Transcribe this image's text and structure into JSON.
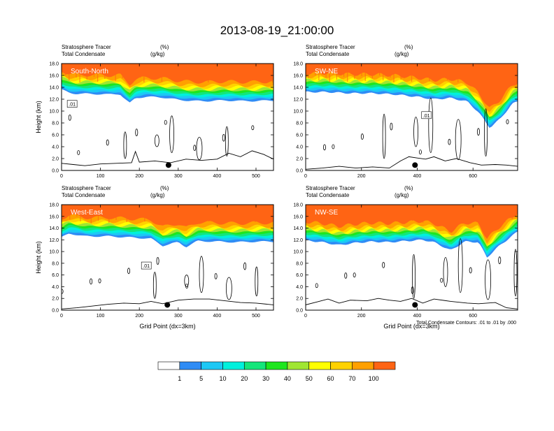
{
  "title": "2013-08-19_21:00:00",
  "colors": {
    "background": "#ffffff",
    "axis": "#000000",
    "palette": [
      "#ffffff",
      "#2f8cf5",
      "#1cc8f5",
      "#00f0dc",
      "#14e67a",
      "#1ee61e",
      "#a0e632",
      "#ffff00",
      "#ffd200",
      "#ffa000",
      "#ff6414",
      "#ff1e14"
    ]
  },
  "colorbar": {
    "levels": [
      "1",
      "5",
      "10",
      "20",
      "30",
      "40",
      "50",
      "60",
      "70",
      "100"
    ]
  },
  "chart_data": [
    {
      "type": "heatmap",
      "panel": "South-North",
      "label": "South-North",
      "legend_left": "Stratosphere Tracer",
      "legend_left2": "Total Condensate",
      "legend_right": "(%)",
      "legend_right2": "(g/kg)",
      "ylabel": "Height (km)",
      "xlabel": "",
      "xlim": [
        0,
        545
      ],
      "ylim": [
        0,
        18
      ],
      "xticks": [
        0,
        100,
        200,
        300,
        400,
        500
      ],
      "yticks": [
        "0.0",
        "2.0",
        "4.0",
        "6.0",
        "8.0",
        "10.0",
        "12.0",
        "14.0",
        "16.0",
        "18.0"
      ],
      "contour_label": ".01",
      "marker_x": 275,
      "tropopause_km": [
        [
          0,
          13.6
        ],
        [
          20,
          13.1
        ],
        [
          40,
          12.9
        ],
        [
          80,
          12.9
        ],
        [
          120,
          12.8
        ],
        [
          150,
          12.9
        ],
        [
          160,
          12.2
        ],
        [
          175,
          11.3
        ],
        [
          190,
          12.2
        ],
        [
          215,
          12.4
        ],
        [
          260,
          12.3
        ],
        [
          300,
          11.9
        ],
        [
          340,
          11.7
        ],
        [
          380,
          11.7
        ],
        [
          420,
          11.8
        ],
        [
          460,
          11.7
        ],
        [
          500,
          11.7
        ],
        [
          545,
          11.8
        ]
      ],
      "terrain_km": [
        [
          0,
          1.2
        ],
        [
          30,
          1.0
        ],
        [
          60,
          0.8
        ],
        [
          100,
          1.1
        ],
        [
          140,
          1.2
        ],
        [
          180,
          1.3
        ],
        [
          190,
          3.2
        ],
        [
          200,
          1.4
        ],
        [
          240,
          1.6
        ],
        [
          280,
          1.3
        ],
        [
          320,
          1.9
        ],
        [
          360,
          1.7
        ],
        [
          400,
          1.9
        ],
        [
          430,
          2.9
        ],
        [
          460,
          2.3
        ],
        [
          490,
          3.3
        ],
        [
          520,
          2.7
        ],
        [
          545,
          1.9
        ]
      ]
    },
    {
      "type": "heatmap",
      "panel": "SW-NE",
      "label": "SW-NE",
      "legend_left": "Stratosphere Tracer",
      "legend_left2": "Total Condensate",
      "legend_right": "(%)",
      "legend_right2": "(g/kg)",
      "ylabel": "",
      "xlabel": "",
      "xlim": [
        0,
        760
      ],
      "ylim": [
        0,
        18
      ],
      "xticks": [
        0,
        200,
        400,
        600
      ],
      "yticks": [
        "0.0",
        "2.0",
        "4.0",
        "6.0",
        "8.0",
        "10.0",
        "12.0",
        "14.0",
        "16.0",
        "18.0"
      ],
      "contour_label": ".01",
      "marker_x": 392,
      "tropopause_km": [
        [
          0,
          13.2
        ],
        [
          80,
          13.2
        ],
        [
          160,
          13.0
        ],
        [
          240,
          13.0
        ],
        [
          320,
          12.8
        ],
        [
          400,
          12.4
        ],
        [
          460,
          12.0
        ],
        [
          520,
          12.2
        ],
        [
          580,
          11.6
        ],
        [
          620,
          9.8
        ],
        [
          660,
          7.2
        ],
        [
          700,
          8.8
        ],
        [
          740,
          11.2
        ],
        [
          760,
          11.6
        ]
      ],
      "terrain_km": [
        [
          0,
          0.2
        ],
        [
          60,
          0.4
        ],
        [
          120,
          0.7
        ],
        [
          180,
          0.4
        ],
        [
          240,
          0.6
        ],
        [
          300,
          0.4
        ],
        [
          340,
          1.6
        ],
        [
          370,
          2.3
        ],
        [
          400,
          2.1
        ],
        [
          430,
          1.9
        ],
        [
          460,
          2.3
        ],
        [
          500,
          1.6
        ],
        [
          540,
          2.0
        ],
        [
          590,
          1.3
        ],
        [
          630,
          0.9
        ],
        [
          680,
          1.0
        ],
        [
          720,
          0.9
        ],
        [
          760,
          0.7
        ]
      ]
    },
    {
      "type": "heatmap",
      "panel": "West-East",
      "label": "West-East",
      "legend_left": "Stratosphere Tracer",
      "legend_left2": "Total Condensate",
      "legend_right": "(%)",
      "legend_right2": "(g/kg)",
      "ylabel": "Height (km)",
      "xlabel": "Grid Point (dx=3km)",
      "xlim": [
        0,
        545
      ],
      "ylim": [
        0,
        18
      ],
      "xticks": [
        0,
        100,
        200,
        300,
        400,
        500
      ],
      "yticks": [
        "0.0",
        "2.0",
        "4.0",
        "6.0",
        "8.0",
        "10.0",
        "12.0",
        "14.0",
        "16.0",
        "18.0"
      ],
      "contour_label": ".01",
      "marker_x": 272,
      "tropopause_km": [
        [
          0,
          12.4
        ],
        [
          20,
          13.1
        ],
        [
          60,
          12.6
        ],
        [
          120,
          12.6
        ],
        [
          180,
          12.4
        ],
        [
          230,
          12.2
        ],
        [
          260,
          11.0
        ],
        [
          300,
          11.6
        ],
        [
          320,
          10.8
        ],
        [
          350,
          11.8
        ],
        [
          400,
          11.7
        ],
        [
          450,
          11.6
        ],
        [
          500,
          11.7
        ],
        [
          545,
          11.7
        ]
      ],
      "terrain_km": [
        [
          0,
          0.2
        ],
        [
          40,
          0.4
        ],
        [
          80,
          0.7
        ],
        [
          120,
          1.0
        ],
        [
          160,
          1.2
        ],
        [
          200,
          1.1
        ],
        [
          230,
          1.5
        ],
        [
          260,
          1.1
        ],
        [
          300,
          1.7
        ],
        [
          340,
          1.9
        ],
        [
          380,
          1.9
        ],
        [
          420,
          1.6
        ],
        [
          460,
          1.3
        ],
        [
          500,
          1.2
        ],
        [
          545,
          0.9
        ]
      ]
    },
    {
      "type": "heatmap",
      "panel": "NW-SE",
      "label": "NW-SE",
      "legend_left": "Stratosphere Tracer",
      "legend_left2": "Total Condensate",
      "legend_right": "(%)",
      "legend_right2": "(g/kg)",
      "ylabel": "",
      "xlabel": "Grid Point (dx=3km)",
      "xlim": [
        0,
        760
      ],
      "ylim": [
        0,
        18
      ],
      "xticks": [
        0,
        200,
        400,
        600
      ],
      "yticks": [
        "0.0",
        "2.0",
        "4.0",
        "6.0",
        "8.0",
        "10.0",
        "12.0",
        "14.0",
        "16.0",
        "18.0"
      ],
      "contour_label": "",
      "marker_x": 392,
      "tropopause_km": [
        [
          0,
          11.9
        ],
        [
          60,
          11.6
        ],
        [
          120,
          11.1
        ],
        [
          180,
          11.5
        ],
        [
          240,
          11.7
        ],
        [
          300,
          11.6
        ],
        [
          360,
          11.8
        ],
        [
          420,
          12.0
        ],
        [
          460,
          11.6
        ],
        [
          520,
          10.2
        ],
        [
          570,
          11.7
        ],
        [
          620,
          11.6
        ],
        [
          650,
          9.0
        ],
        [
          690,
          10.8
        ],
        [
          730,
          12.3
        ],
        [
          760,
          13.4
        ]
      ],
      "terrain_km": [
        [
          0,
          0.9
        ],
        [
          40,
          1.4
        ],
        [
          80,
          1.9
        ],
        [
          120,
          1.2
        ],
        [
          160,
          1.7
        ],
        [
          220,
          1.6
        ],
        [
          260,
          2.0
        ],
        [
          300,
          1.7
        ],
        [
          340,
          1.5
        ],
        [
          380,
          2.0
        ],
        [
          420,
          1.2
        ],
        [
          460,
          1.9
        ],
        [
          520,
          1.5
        ],
        [
          580,
          1.2
        ],
        [
          620,
          1.1
        ],
        [
          680,
          1.3
        ],
        [
          720,
          0.4
        ],
        [
          760,
          0.2
        ]
      ]
    }
  ],
  "footnote": "Total Condensate Contours: .01 to .01 by .000"
}
